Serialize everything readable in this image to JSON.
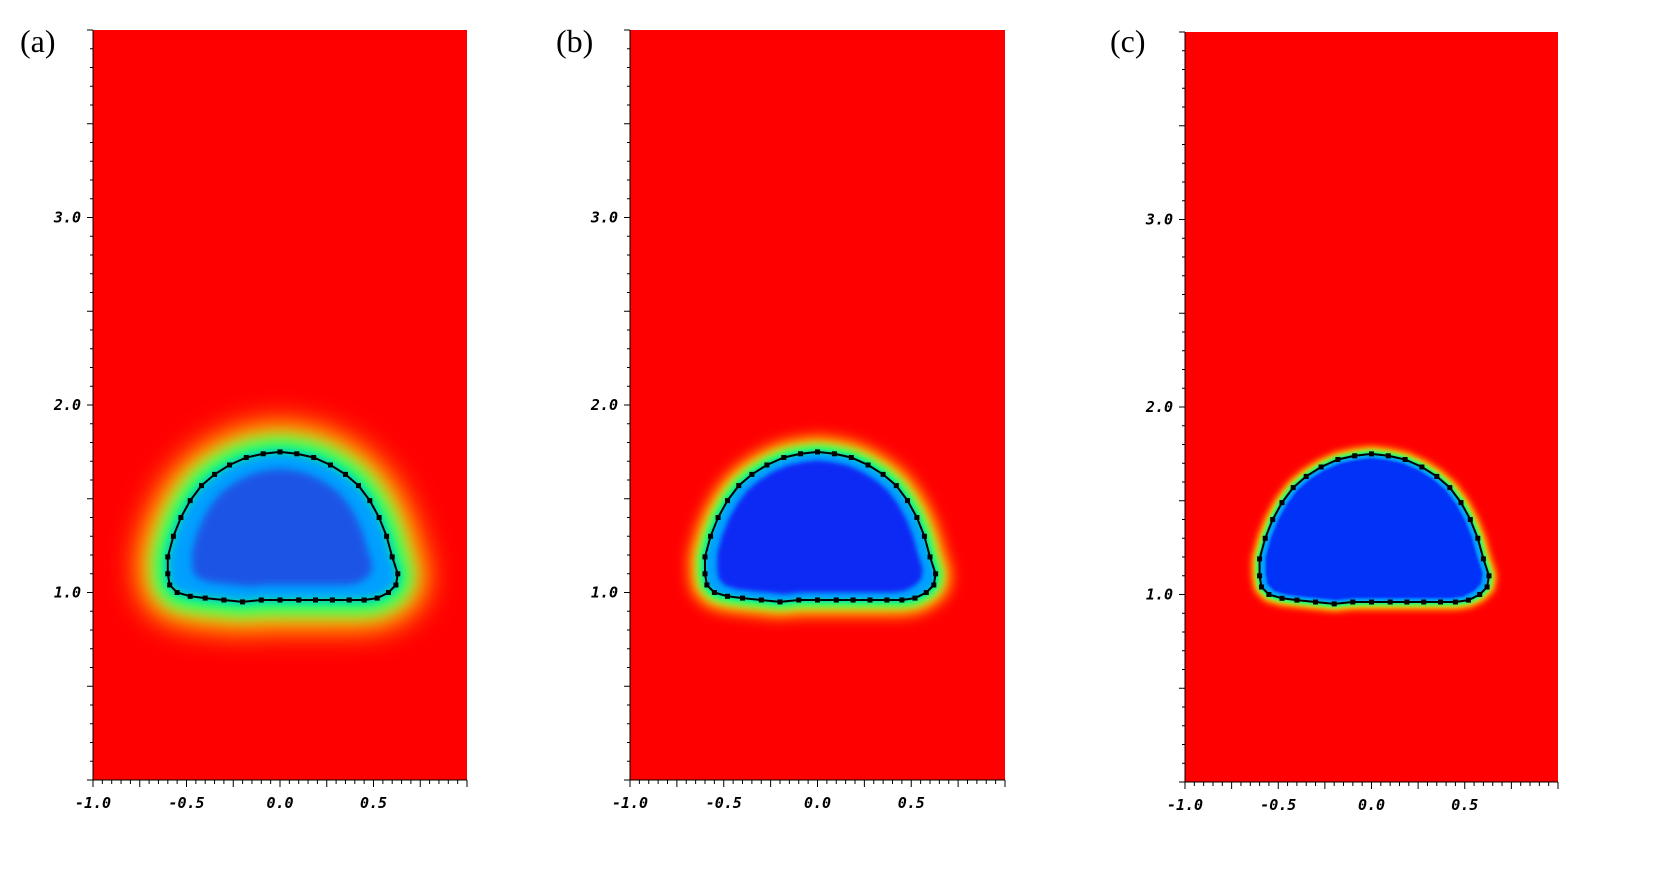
{
  "chart_data": [
    {
      "type": "heatmap",
      "panel_label": "(a)",
      "xlim": [
        -1.0,
        1.0
      ],
      "ylim": [
        0.0,
        4.0
      ],
      "x_ticks": [
        "-1.0",
        "-0.5",
        "0.0",
        "0.5"
      ],
      "y_ticks": [
        "1.0",
        "2.0",
        "3.0"
      ],
      "x_tick_values": [
        -1.0,
        -0.5,
        0.0,
        0.5
      ],
      "y_tick_values": [
        1.0,
        2.0,
        3.0
      ],
      "colormap": [
        "#0000ff",
        "#00a0ff",
        "#00ff80",
        "#ffff00",
        "#ff0000"
      ],
      "field": {
        "inner_color": "#1d55e6",
        "outer_color": "#ff0000",
        "interface_blur": 0.18
      },
      "interface": {
        "x": [
          -0.6,
          -0.57,
          -0.53,
          -0.48,
          -0.42,
          -0.35,
          -0.27,
          -0.18,
          -0.09,
          0.0,
          0.09,
          0.18,
          0.27,
          0.35,
          0.42,
          0.48,
          0.53,
          0.57,
          0.6,
          0.63,
          0.62,
          0.58,
          0.52,
          0.45,
          0.37,
          0.28,
          0.19,
          0.1,
          0.0,
          -0.1,
          -0.2,
          -0.3,
          -0.4,
          -0.48,
          -0.55,
          -0.59,
          -0.6
        ],
        "y": [
          1.19,
          1.3,
          1.4,
          1.49,
          1.57,
          1.63,
          1.68,
          1.72,
          1.74,
          1.75,
          1.74,
          1.72,
          1.68,
          1.63,
          1.57,
          1.49,
          1.4,
          1.3,
          1.19,
          1.1,
          1.04,
          1.0,
          0.97,
          0.96,
          0.96,
          0.96,
          0.96,
          0.96,
          0.96,
          0.96,
          0.95,
          0.96,
          0.97,
          0.98,
          1.0,
          1.04,
          1.1
        ]
      }
    },
    {
      "type": "heatmap",
      "panel_label": "(b)",
      "xlim": [
        -1.0,
        1.0
      ],
      "ylim": [
        0.0,
        4.0
      ],
      "x_ticks": [
        "-1.0",
        "-0.5",
        "0.0",
        "0.5"
      ],
      "y_ticks": [
        "1.0",
        "2.0",
        "3.0"
      ],
      "x_tick_values": [
        -1.0,
        -0.5,
        0.0,
        0.5
      ],
      "y_tick_values": [
        1.0,
        2.0,
        3.0
      ],
      "colormap": [
        "#0000ff",
        "#00a0ff",
        "#00ff80",
        "#ffff00",
        "#ff0000"
      ],
      "field": {
        "inner_color": "#0a2bf5",
        "outer_color": "#ff0000",
        "interface_blur": 0.09
      },
      "interface": {
        "x": [
          -0.6,
          -0.57,
          -0.53,
          -0.48,
          -0.42,
          -0.35,
          -0.27,
          -0.18,
          -0.09,
          0.0,
          0.09,
          0.18,
          0.27,
          0.35,
          0.42,
          0.48,
          0.53,
          0.57,
          0.6,
          0.63,
          0.62,
          0.58,
          0.52,
          0.45,
          0.37,
          0.28,
          0.19,
          0.1,
          0.0,
          -0.1,
          -0.2,
          -0.3,
          -0.4,
          -0.48,
          -0.55,
          -0.59,
          -0.6
        ],
        "y": [
          1.19,
          1.3,
          1.4,
          1.49,
          1.57,
          1.63,
          1.68,
          1.72,
          1.74,
          1.75,
          1.74,
          1.72,
          1.68,
          1.63,
          1.57,
          1.49,
          1.4,
          1.3,
          1.19,
          1.1,
          1.04,
          1.0,
          0.97,
          0.96,
          0.96,
          0.96,
          0.96,
          0.96,
          0.96,
          0.96,
          0.95,
          0.96,
          0.97,
          0.98,
          1.0,
          1.04,
          1.1
        ]
      }
    },
    {
      "type": "heatmap",
      "panel_label": "(c)",
      "xlim": [
        -1.0,
        1.0
      ],
      "ylim": [
        0.0,
        4.0
      ],
      "x_ticks": [
        "-1.0",
        "-0.5",
        "0.0",
        "0.5"
      ],
      "y_ticks": [
        "1.0",
        "2.0",
        "3.0"
      ],
      "x_tick_values": [
        -1.0,
        -0.5,
        0.0,
        0.5
      ],
      "y_tick_values": [
        1.0,
        2.0,
        3.0
      ],
      "colormap": [
        "#0000ff",
        "#00a0ff",
        "#00ff80",
        "#ffff00",
        "#ff0000"
      ],
      "field": {
        "inner_color": "#0430f8",
        "outer_color": "#ff0000",
        "interface_blur": 0.045
      },
      "interface": {
        "x": [
          -0.6,
          -0.57,
          -0.53,
          -0.48,
          -0.42,
          -0.35,
          -0.27,
          -0.18,
          -0.09,
          0.0,
          0.09,
          0.18,
          0.27,
          0.35,
          0.42,
          0.48,
          0.53,
          0.57,
          0.6,
          0.63,
          0.62,
          0.58,
          0.52,
          0.45,
          0.37,
          0.28,
          0.19,
          0.1,
          0.0,
          -0.1,
          -0.2,
          -0.3,
          -0.4,
          -0.48,
          -0.55,
          -0.59,
          -0.6
        ],
        "y": [
          1.19,
          1.3,
          1.4,
          1.49,
          1.57,
          1.63,
          1.68,
          1.72,
          1.74,
          1.75,
          1.74,
          1.72,
          1.68,
          1.63,
          1.57,
          1.49,
          1.4,
          1.3,
          1.19,
          1.1,
          1.04,
          1.0,
          0.97,
          0.96,
          0.96,
          0.96,
          0.96,
          0.96,
          0.96,
          0.96,
          0.95,
          0.96,
          0.97,
          0.98,
          1.0,
          1.04,
          1.1
        ]
      }
    }
  ]
}
